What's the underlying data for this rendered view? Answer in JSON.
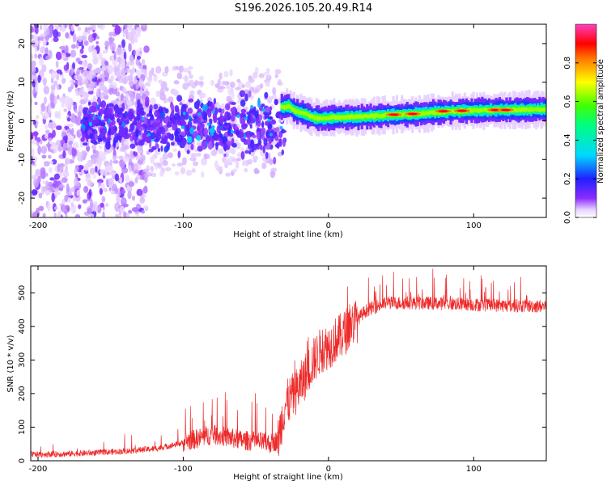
{
  "title": "S196.2026.105.20.49.R14",
  "colors": {
    "snr_line": "#ee2a2a",
    "axes": "#000000"
  },
  "chart_data": [
    {
      "type": "heatmap",
      "xlabel": "Height of straight line (km)",
      "ylabel": "Frequency (Hz)",
      "xlim": [
        -205,
        150
      ],
      "ylim": [
        -25,
        25
      ],
      "xticks": [
        -200,
        -100,
        0,
        100
      ],
      "yticks": [
        -20,
        -10,
        0,
        10,
        20
      ],
      "colorbar": {
        "label": "Normalized spectral amplitude",
        "range": [
          0,
          1
        ],
        "ticks": [
          0.0,
          0.2,
          0.4,
          0.6,
          0.8
        ],
        "colormap": "rainbow"
      },
      "ridge": [
        {
          "x": -33,
          "y": 3.5
        },
        {
          "x": -28,
          "y": 3.8
        },
        {
          "x": -24,
          "y": 2.5
        },
        {
          "x": -18,
          "y": 2.0
        },
        {
          "x": -12,
          "y": 1.0
        },
        {
          "x": -5,
          "y": 0.6
        },
        {
          "x": 0,
          "y": 0.8
        },
        {
          "x": 10,
          "y": 1.0
        },
        {
          "x": 20,
          "y": 1.0
        },
        {
          "x": 40,
          "y": 1.5
        },
        {
          "x": 60,
          "y": 1.8
        },
        {
          "x": 80,
          "y": 2.4
        },
        {
          "x": 100,
          "y": 2.7
        },
        {
          "x": 120,
          "y": 2.8
        },
        {
          "x": 150,
          "y": 3.0
        }
      ],
      "peaks": [
        {
          "x": 45,
          "y": 1.6
        },
        {
          "x": 58,
          "y": 1.8
        },
        {
          "x": 79,
          "y": 2.5
        },
        {
          "x": 92,
          "y": 2.6
        },
        {
          "x": 115,
          "y": 2.8
        },
        {
          "x": 122,
          "y": 2.8
        }
      ]
    },
    {
      "type": "line",
      "xlabel": "Height of straight line (km)",
      "ylabel": "SNR (10 * v/v)",
      "xlim": [
        -205,
        150
      ],
      "ylim": [
        0,
        580
      ],
      "xticks": [
        -200,
        -100,
        0,
        100
      ],
      "yticks": [
        0,
        100,
        200,
        300,
        400,
        500
      ],
      "series": [
        {
          "name": "SNR",
          "x": [
            -205,
            -180,
            -160,
            -140,
            -120,
            -110,
            -100,
            -90,
            -80,
            -70,
            -60,
            -50,
            -40,
            -35,
            -30,
            -25,
            -20,
            -15,
            -10,
            -5,
            0,
            5,
            10,
            15,
            20,
            25,
            30,
            40,
            60,
            80,
            100,
            120,
            150
          ],
          "values": [
            15,
            17,
            20,
            25,
            32,
            40,
            50,
            60,
            72,
            65,
            55,
            52,
            45,
            55,
            165,
            190,
            220,
            260,
            300,
            330,
            340,
            360,
            375,
            405,
            420,
            445,
            455,
            470,
            470,
            468,
            465,
            462,
            460
          ]
        }
      ]
    }
  ]
}
